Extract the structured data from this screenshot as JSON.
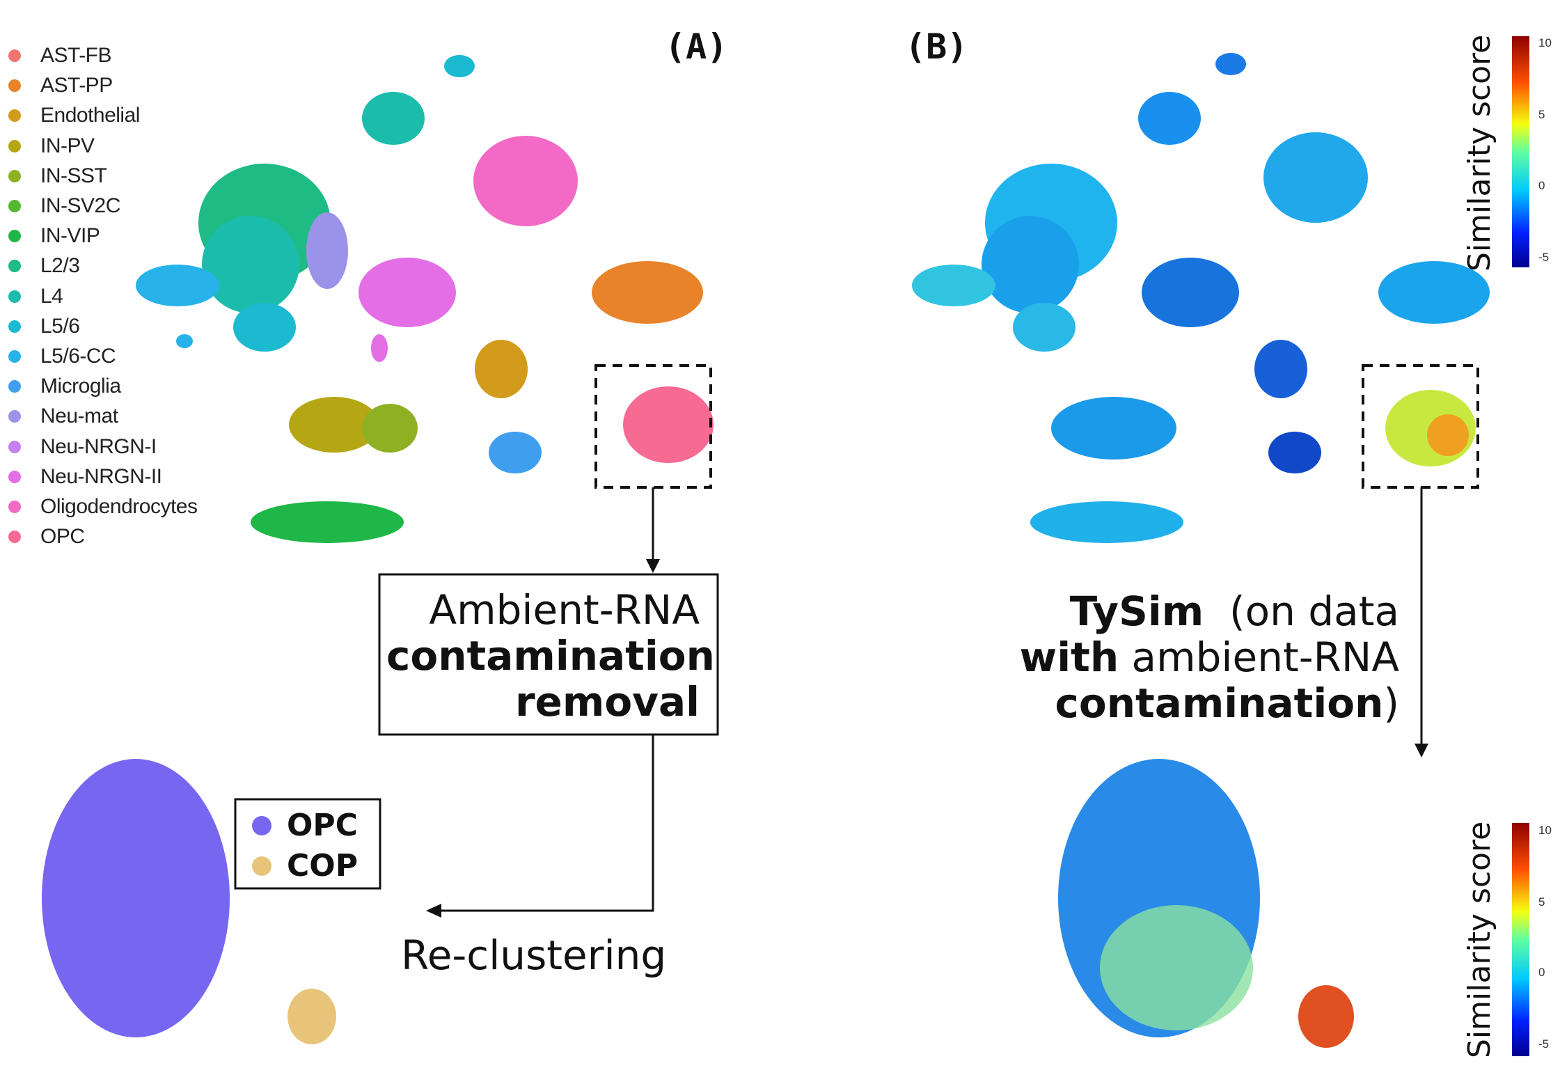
{
  "panels": {
    "a_label": "(A)",
    "b_label": "(B)"
  },
  "legend": {
    "items": [
      {
        "label": "AST-FB",
        "color": "#f07470"
      },
      {
        "label": "AST-PP",
        "color": "#e8832a"
      },
      {
        "label": "Endothelial",
        "color": "#d29b1c"
      },
      {
        "label": "IN-PV",
        "color": "#b5a614"
      },
      {
        "label": "IN-SST",
        "color": "#8eb124"
      },
      {
        "label": "IN-SV2C",
        "color": "#55b930"
      },
      {
        "label": "IN-VIP",
        "color": "#1fb848"
      },
      {
        "label": "L2/3",
        "color": "#1ebb84"
      },
      {
        "label": "L4",
        "color": "#1cbcad"
      },
      {
        "label": "L5/6",
        "color": "#1bbad0"
      },
      {
        "label": "L5/6-CC",
        "color": "#27b2ea"
      },
      {
        "label": "Microglia",
        "color": "#3f9fee"
      },
      {
        "label": "Neu-mat",
        "color": "#9b92ea"
      },
      {
        "label": "Neu-NRGN-I",
        "color": "#c57ff0"
      },
      {
        "label": "Neu-NRGN-II",
        "color": "#e46ee6"
      },
      {
        "label": "Oligodendrocytes",
        "color": "#f36ac6"
      },
      {
        "label": "OPC",
        "color": "#f76a92"
      }
    ]
  },
  "box_a": {
    "line1": "Ambient-RNA",
    "line2": "contamination",
    "line3": "removal"
  },
  "reclustering_label": "Re-clustering",
  "tysim": {
    "word1": "TySim",
    "word2": "(on data",
    "word3": "with",
    "word4": "ambient-RNA",
    "word5": "contamination",
    "word6": ")"
  },
  "subcluster_legend": {
    "items": [
      {
        "label": "OPC",
        "color": "#7767f0"
      },
      {
        "label": "COP",
        "color": "#e8c47a"
      }
    ]
  },
  "colorbar": {
    "title": "Similarity score",
    "ticks": [
      "10",
      "5",
      "0",
      "-5"
    ],
    "ticks_bottom": [
      "10",
      "5",
      "0",
      "-5"
    ]
  }
}
